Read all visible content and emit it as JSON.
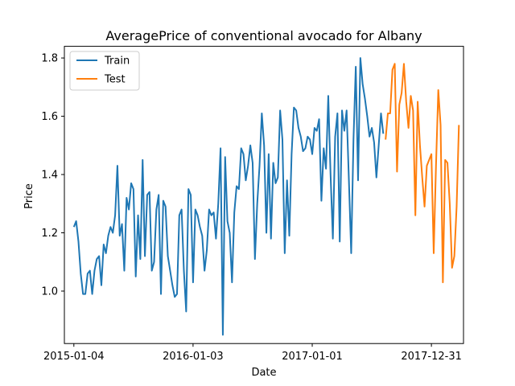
{
  "chart_data": {
    "type": "line",
    "title": "AveragePrice of conventional avocado for Albany",
    "xlabel": "Date",
    "ylabel": "Price",
    "x_tick_labels": [
      "2015-01-04",
      "2016-01-03",
      "2017-01-01",
      "2017-12-31"
    ],
    "y_ticks": [
      1.0,
      1.2,
      1.4,
      1.6,
      1.8
    ],
    "y_tick_labels": [
      "1.0",
      "1.2",
      "1.4",
      "1.6",
      "1.8"
    ],
    "x_range": [
      "2014-12-06",
      "2018-04-08"
    ],
    "ylim": [
      0.82,
      1.84
    ],
    "legend_position": "top-left",
    "grid": false,
    "series": [
      {
        "name": "Train",
        "color": "#1f77b4",
        "points": [
          [
            "2015-01-04",
            1.22
          ],
          [
            "2015-01-11",
            1.24
          ],
          [
            "2015-01-18",
            1.17
          ],
          [
            "2015-01-25",
            1.06
          ],
          [
            "2015-02-01",
            0.99
          ],
          [
            "2015-02-08",
            0.99
          ],
          [
            "2015-02-15",
            1.06
          ],
          [
            "2015-02-22",
            1.07
          ],
          [
            "2015-03-01",
            0.99
          ],
          [
            "2015-03-08",
            1.07
          ],
          [
            "2015-03-15",
            1.11
          ],
          [
            "2015-03-22",
            1.12
          ],
          [
            "2015-03-29",
            1.02
          ],
          [
            "2015-04-05",
            1.16
          ],
          [
            "2015-04-12",
            1.13
          ],
          [
            "2015-04-19",
            1.19
          ],
          [
            "2015-04-26",
            1.22
          ],
          [
            "2015-05-03",
            1.2
          ],
          [
            "2015-05-10",
            1.26
          ],
          [
            "2015-05-17",
            1.43
          ],
          [
            "2015-05-24",
            1.19
          ],
          [
            "2015-05-31",
            1.23
          ],
          [
            "2015-06-07",
            1.07
          ],
          [
            "2015-06-14",
            1.32
          ],
          [
            "2015-06-21",
            1.28
          ],
          [
            "2015-06-28",
            1.37
          ],
          [
            "2015-07-05",
            1.35
          ],
          [
            "2015-07-12",
            1.05
          ],
          [
            "2015-07-19",
            1.26
          ],
          [
            "2015-07-26",
            1.11
          ],
          [
            "2015-08-02",
            1.45
          ],
          [
            "2015-08-09",
            1.12
          ],
          [
            "2015-08-16",
            1.33
          ],
          [
            "2015-08-23",
            1.34
          ],
          [
            "2015-08-30",
            1.07
          ],
          [
            "2015-09-06",
            1.1
          ],
          [
            "2015-09-13",
            1.28
          ],
          [
            "2015-09-20",
            1.33
          ],
          [
            "2015-09-27",
            0.99
          ],
          [
            "2015-10-04",
            1.31
          ],
          [
            "2015-10-11",
            1.29
          ],
          [
            "2015-10-18",
            1.12
          ],
          [
            "2015-10-25",
            1.07
          ],
          [
            "2015-11-01",
            1.02
          ],
          [
            "2015-11-08",
            0.98
          ],
          [
            "2015-11-15",
            0.99
          ],
          [
            "2015-11-22",
            1.26
          ],
          [
            "2015-11-29",
            1.28
          ],
          [
            "2015-12-06",
            1.07
          ],
          [
            "2015-12-13",
            0.93
          ],
          [
            "2015-12-20",
            1.35
          ],
          [
            "2015-12-27",
            1.33
          ],
          [
            "2016-01-03",
            1.03
          ],
          [
            "2016-01-10",
            1.28
          ],
          [
            "2016-01-17",
            1.26
          ],
          [
            "2016-01-24",
            1.22
          ],
          [
            "2016-01-31",
            1.19
          ],
          [
            "2016-02-07",
            1.07
          ],
          [
            "2016-02-14",
            1.14
          ],
          [
            "2016-02-21",
            1.28
          ],
          [
            "2016-02-28",
            1.26
          ],
          [
            "2016-03-06",
            1.27
          ],
          [
            "2016-03-13",
            1.18
          ],
          [
            "2016-03-20",
            1.3
          ],
          [
            "2016-03-27",
            1.49
          ],
          [
            "2016-04-03",
            0.85
          ],
          [
            "2016-04-10",
            1.46
          ],
          [
            "2016-04-17",
            1.24
          ],
          [
            "2016-04-24",
            1.2
          ],
          [
            "2016-05-01",
            1.03
          ],
          [
            "2016-05-08",
            1.27
          ],
          [
            "2016-05-15",
            1.36
          ],
          [
            "2016-05-22",
            1.35
          ],
          [
            "2016-05-29",
            1.49
          ],
          [
            "2016-06-05",
            1.47
          ],
          [
            "2016-06-12",
            1.38
          ],
          [
            "2016-06-19",
            1.43
          ],
          [
            "2016-06-26",
            1.5
          ],
          [
            "2016-07-03",
            1.44
          ],
          [
            "2016-07-10",
            1.11
          ],
          [
            "2016-07-17",
            1.3
          ],
          [
            "2016-07-24",
            1.43
          ],
          [
            "2016-07-31",
            1.61
          ],
          [
            "2016-08-07",
            1.5
          ],
          [
            "2016-08-14",
            1.2
          ],
          [
            "2016-08-21",
            1.47
          ],
          [
            "2016-08-28",
            1.18
          ],
          [
            "2016-09-04",
            1.44
          ],
          [
            "2016-09-11",
            1.37
          ],
          [
            "2016-09-18",
            1.39
          ],
          [
            "2016-09-25",
            1.62
          ],
          [
            "2016-10-02",
            1.52
          ],
          [
            "2016-10-09",
            1.13
          ],
          [
            "2016-10-16",
            1.38
          ],
          [
            "2016-10-23",
            1.19
          ],
          [
            "2016-10-30",
            1.47
          ],
          [
            "2016-11-06",
            1.63
          ],
          [
            "2016-11-13",
            1.62
          ],
          [
            "2016-11-20",
            1.56
          ],
          [
            "2016-11-27",
            1.53
          ],
          [
            "2016-12-04",
            1.48
          ],
          [
            "2016-12-11",
            1.49
          ],
          [
            "2016-12-18",
            1.53
          ],
          [
            "2016-12-25",
            1.52
          ],
          [
            "2017-01-01",
            1.47
          ],
          [
            "2017-01-08",
            1.56
          ],
          [
            "2017-01-15",
            1.55
          ],
          [
            "2017-01-22",
            1.59
          ],
          [
            "2017-01-29",
            1.31
          ],
          [
            "2017-02-05",
            1.49
          ],
          [
            "2017-02-12",
            1.42
          ],
          [
            "2017-02-19",
            1.67
          ],
          [
            "2017-02-26",
            1.4
          ],
          [
            "2017-03-05",
            1.18
          ],
          [
            "2017-03-12",
            1.53
          ],
          [
            "2017-03-19",
            1.61
          ],
          [
            "2017-03-26",
            1.17
          ],
          [
            "2017-04-02",
            1.62
          ],
          [
            "2017-04-09",
            1.55
          ],
          [
            "2017-04-16",
            1.62
          ],
          [
            "2017-04-23",
            1.38
          ],
          [
            "2017-04-30",
            1.13
          ],
          [
            "2017-05-07",
            1.52
          ],
          [
            "2017-05-14",
            1.77
          ],
          [
            "2017-05-21",
            1.38
          ],
          [
            "2017-05-28",
            1.8
          ],
          [
            "2017-06-04",
            1.71
          ],
          [
            "2017-06-11",
            1.66
          ],
          [
            "2017-06-18",
            1.6
          ],
          [
            "2017-06-25",
            1.53
          ],
          [
            "2017-07-02",
            1.56
          ],
          [
            "2017-07-09",
            1.51
          ],
          [
            "2017-07-16",
            1.39
          ],
          [
            "2017-07-23",
            1.5
          ],
          [
            "2017-07-30",
            1.61
          ],
          [
            "2017-08-06",
            1.54
          ]
        ]
      },
      {
        "name": "Test",
        "color": "#ff7f0e",
        "points": [
          [
            "2017-08-13",
            1.52
          ],
          [
            "2017-08-20",
            1.61
          ],
          [
            "2017-08-27",
            1.61
          ],
          [
            "2017-09-03",
            1.76
          ],
          [
            "2017-09-10",
            1.78
          ],
          [
            "2017-09-17",
            1.41
          ],
          [
            "2017-09-24",
            1.64
          ],
          [
            "2017-10-01",
            1.68
          ],
          [
            "2017-10-08",
            1.78
          ],
          [
            "2017-10-15",
            1.65
          ],
          [
            "2017-10-22",
            1.56
          ],
          [
            "2017-10-29",
            1.67
          ],
          [
            "2017-11-05",
            1.62
          ],
          [
            "2017-11-12",
            1.26
          ],
          [
            "2017-11-19",
            1.65
          ],
          [
            "2017-11-26",
            1.5
          ],
          [
            "2017-12-03",
            1.39
          ],
          [
            "2017-12-10",
            1.29
          ],
          [
            "2017-12-17",
            1.43
          ],
          [
            "2017-12-24",
            1.45
          ],
          [
            "2017-12-31",
            1.47
          ],
          [
            "2018-01-07",
            1.13
          ],
          [
            "2018-01-14",
            1.43
          ],
          [
            "2018-01-21",
            1.69
          ],
          [
            "2018-01-28",
            1.57
          ],
          [
            "2018-02-04",
            1.03
          ],
          [
            "2018-02-11",
            1.45
          ],
          [
            "2018-02-18",
            1.44
          ],
          [
            "2018-02-25",
            1.3
          ],
          [
            "2018-03-04",
            1.08
          ],
          [
            "2018-03-11",
            1.12
          ],
          [
            "2018-03-18",
            1.29
          ],
          [
            "2018-03-25",
            1.57
          ]
        ]
      }
    ]
  }
}
